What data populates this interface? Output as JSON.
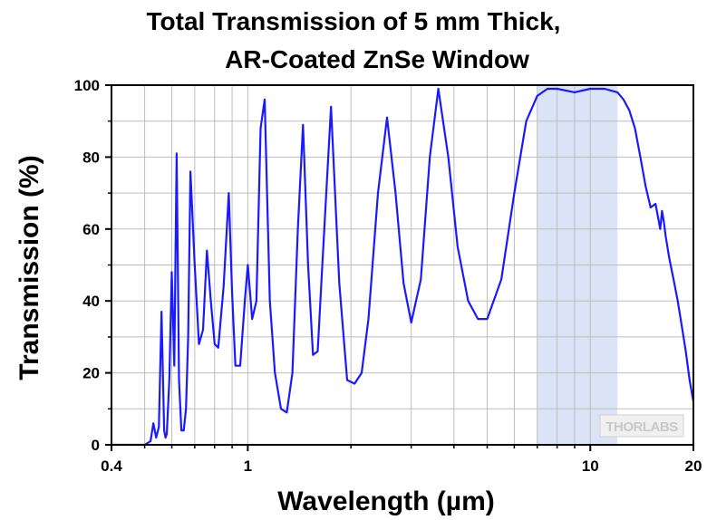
{
  "chart_data": {
    "type": "line",
    "title_lines": [
      "Total Transmission of 5 mm Thick,",
      "AR-Coated ZnSe Window"
    ],
    "xlabel": "Wavelength (µm)",
    "ylabel": "Transmission (%)",
    "x_scale": "log",
    "xlim": [
      0.4,
      20
    ],
    "ylim": [
      0,
      100
    ],
    "x_tick_labels": [
      {
        "value": 0.4,
        "label": "0.4"
      },
      {
        "value": 1,
        "label": "1"
      },
      {
        "value": 10,
        "label": "10"
      },
      {
        "value": 20,
        "label": "20"
      }
    ],
    "y_tick_labels": [
      {
        "value": 0,
        "label": "0"
      },
      {
        "value": 20,
        "label": "20"
      },
      {
        "value": 40,
        "label": "40"
      },
      {
        "value": 60,
        "label": "60"
      },
      {
        "value": 80,
        "label": "80"
      },
      {
        "value": 100,
        "label": "100"
      }
    ],
    "grid": true,
    "line_color": "#1a1aff",
    "highlight_color": "#dbe4f7",
    "highlighted_range": [
      7,
      12
    ],
    "watermark": "THORLABS",
    "series": [
      {
        "x": [
          0.4,
          0.5,
          0.52,
          0.53,
          0.54,
          0.55,
          0.56,
          0.57,
          0.575,
          0.58,
          0.59,
          0.6,
          0.61,
          0.62,
          0.63,
          0.64,
          0.65,
          0.66,
          0.67,
          0.68,
          0.7,
          0.72,
          0.74,
          0.76,
          0.78,
          0.8,
          0.82,
          0.85,
          0.88,
          0.9,
          0.92,
          0.95,
          0.98,
          1.0,
          1.03,
          1.06,
          1.09,
          1.12,
          1.16,
          1.2,
          1.25,
          1.3,
          1.35,
          1.4,
          1.45,
          1.5,
          1.55,
          1.6,
          1.65,
          1.75,
          1.85,
          1.95,
          2.05,
          2.15,
          2.25,
          2.4,
          2.55,
          2.7,
          2.85,
          3.0,
          3.2,
          3.4,
          3.6,
          3.85,
          4.1,
          4.4,
          4.7,
          5.0,
          5.5,
          6.0,
          6.5,
          7.0,
          7.5,
          8.0,
          9.0,
          10.0,
          11.0,
          12.0,
          12.5,
          13.0,
          13.5,
          14.0,
          14.5,
          15.0,
          15.5,
          16.0,
          16.2,
          16.4,
          16.6,
          17.0,
          17.5,
          18.0,
          18.5,
          19.0,
          19.5,
          20.0
        ],
        "y": [
          0,
          0,
          1,
          6,
          2,
          5,
          37,
          4,
          2,
          3,
          18,
          48,
          22,
          81,
          18,
          4,
          4,
          10,
          30,
          76,
          50,
          28,
          32,
          54,
          40,
          28,
          27,
          44,
          70,
          42,
          22,
          22,
          40,
          50,
          35,
          40,
          88,
          96,
          40,
          20,
          10,
          9,
          20,
          60,
          89,
          50,
          25,
          26,
          50,
          94,
          45,
          18,
          17,
          20,
          35,
          70,
          91,
          70,
          45,
          34,
          46,
          80,
          99,
          80,
          55,
          40,
          35,
          35,
          46,
          70,
          90,
          97,
          99,
          99,
          98,
          99,
          99,
          98,
          96,
          93,
          88,
          80,
          72,
          66,
          67,
          60,
          65,
          62,
          58,
          52,
          46,
          40,
          33,
          26,
          18,
          12
        ]
      }
    ]
  }
}
